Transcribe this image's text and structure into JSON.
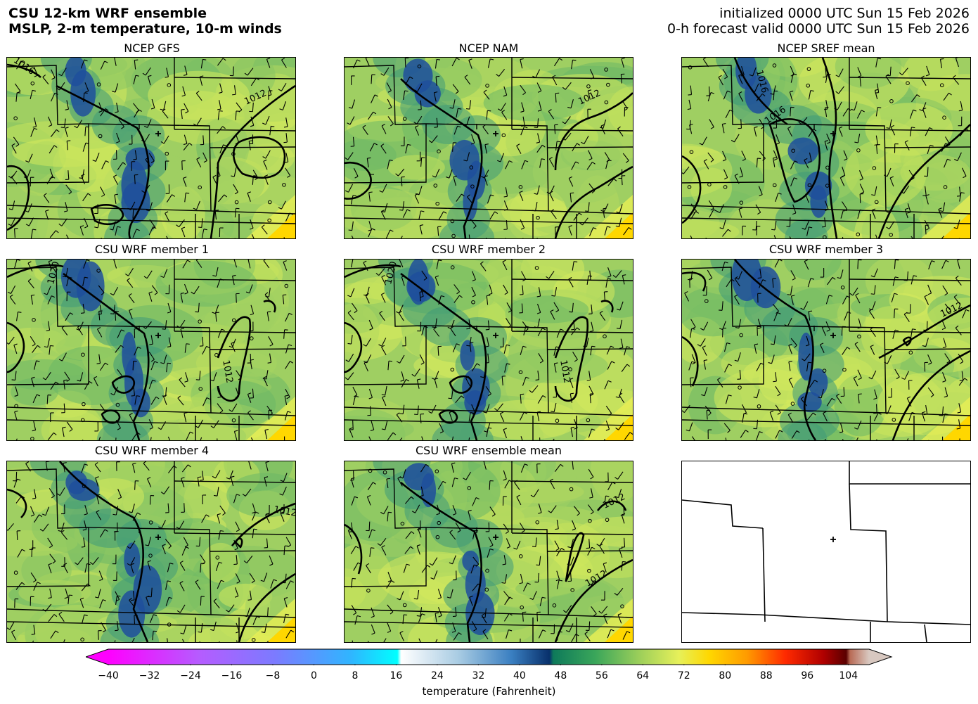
{
  "header": {
    "title_line1": "CSU 12-km WRF ensemble",
    "title_line2": "MSLP, 2-m temperature, 10-m winds",
    "init_line": "initialized 0000 UTC Sun 15 Feb 2026",
    "valid_line": "0-h forecast valid 0000 UTC Sun 15 Feb 2026"
  },
  "panels": [
    {
      "title": "NCEP GFS",
      "isobars": [
        "1016",
        "1012"
      ]
    },
    {
      "title": "NCEP NAM",
      "isobars": [
        "1012"
      ]
    },
    {
      "title": "NCEP SREF mean",
      "isobars": [
        "1016",
        "1016"
      ]
    },
    {
      "title": "CSU WRF member 1",
      "isobars": [
        "1020",
        "1012"
      ]
    },
    {
      "title": "CSU WRF member 2",
      "isobars": [
        "1020",
        "1012"
      ]
    },
    {
      "title": "CSU WRF member 3",
      "isobars": [
        "1012"
      ]
    },
    {
      "title": "CSU WRF member 4",
      "isobars": [
        "1012"
      ]
    },
    {
      "title": "CSU WRF ensemble mean",
      "isobars": [
        "1012",
        "1012"
      ]
    },
    {
      "title": "",
      "isobars": []
    }
  ],
  "colorbar": {
    "label": "temperature (Fahrenheit)",
    "ticks": [
      "−40",
      "−32",
      "−24",
      "−16",
      "−8",
      "0",
      "8",
      "16",
      "24",
      "32",
      "40",
      "48",
      "56",
      "64",
      "72",
      "80",
      "88",
      "96",
      "104"
    ],
    "range": [
      -40,
      108
    ],
    "colors": {
      "cold_extend": "#ff00ff",
      "zero": "#00ffff",
      "freezing": "#08306b",
      "mild": "#1a9850",
      "warm": "#c6e75a",
      "hot": "#ffd700",
      "very_hot": "#ff2a00",
      "extreme": "#67000d",
      "warm_extend": "#d8c8c0"
    }
  }
}
